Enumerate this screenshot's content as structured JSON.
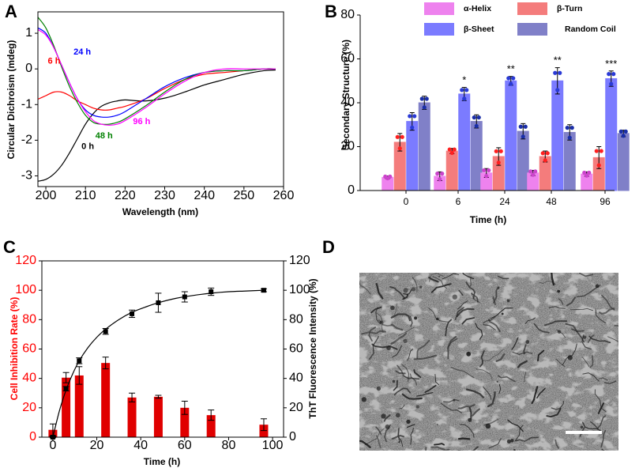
{
  "figure": {
    "panels": {
      "A": {
        "letter": "A"
      },
      "B": {
        "letter": "B"
      },
      "C": {
        "letter": "C"
      },
      "D": {
        "letter": "D"
      }
    }
  },
  "chart_data": [
    {
      "id": "A",
      "type": "line",
      "title": "",
      "xlabel": "Wavelength (nm)",
      "ylabel": "Circular Dichroism (mdeg)",
      "xlim": [
        198,
        260
      ],
      "ylim": [
        -3.3,
        1.6
      ],
      "xticks": [
        "200",
        "210",
        "220",
        "230",
        "240",
        "250",
        "260"
      ],
      "xtick_values": [
        200,
        210,
        220,
        230,
        240,
        250,
        260
      ],
      "yticks": [
        "-3",
        "-2",
        "-1",
        "0",
        "1"
      ],
      "ytick_values": [
        -3,
        -2,
        -1,
        0,
        1
      ],
      "series": [
        {
          "name": "0 h",
          "color": "#000000",
          "x": [
            198,
            200,
            202,
            204,
            206,
            208,
            210,
            212,
            214,
            216,
            218,
            220,
            225,
            230,
            235,
            240,
            245,
            250,
            255,
            258
          ],
          "y": [
            -3.15,
            -3.1,
            -2.95,
            -2.7,
            -2.35,
            -1.95,
            -1.55,
            -1.25,
            -1.05,
            -0.95,
            -0.9,
            -0.87,
            -0.9,
            -0.82,
            -0.65,
            -0.45,
            -0.3,
            -0.15,
            -0.05,
            -0.03
          ]
        },
        {
          "name": "6 h",
          "color": "#ff0000",
          "x": [
            198,
            200,
            202,
            204,
            206,
            208,
            210,
            212,
            214,
            216,
            218,
            220,
            225,
            230,
            235,
            240,
            245,
            250,
            255,
            258
          ],
          "y": [
            -0.85,
            -0.75,
            -0.65,
            -0.65,
            -0.75,
            -0.9,
            -1.0,
            -1.1,
            -1.15,
            -1.15,
            -1.1,
            -1.05,
            -0.85,
            -0.55,
            -0.3,
            -0.15,
            -0.1,
            -0.05,
            0.0,
            0.0
          ]
        },
        {
          "name": "24 h",
          "color": "#0000ff",
          "x": [
            198,
            200,
            202,
            204,
            206,
            208,
            210,
            212,
            214,
            216,
            218,
            220,
            225,
            230,
            235,
            240,
            245,
            250,
            255,
            258
          ],
          "y": [
            1.15,
            1.0,
            0.6,
            0.1,
            -0.4,
            -0.85,
            -1.15,
            -1.3,
            -1.35,
            -1.35,
            -1.3,
            -1.2,
            -0.85,
            -0.5,
            -0.25,
            -0.1,
            -0.05,
            -0.05,
            0.0,
            0.0
          ]
        },
        {
          "name": "48 h",
          "color": "#008000",
          "x": [
            198,
            200,
            202,
            204,
            206,
            208,
            210,
            212,
            214,
            216,
            218,
            220,
            225,
            230,
            235,
            240,
            245,
            250,
            255,
            258
          ],
          "y": [
            1.45,
            1.15,
            0.65,
            0.05,
            -0.5,
            -0.95,
            -1.3,
            -1.5,
            -1.55,
            -1.55,
            -1.5,
            -1.4,
            -1.05,
            -0.65,
            -0.3,
            -0.1,
            -0.05,
            -0.05,
            0.0,
            0.0
          ]
        },
        {
          "name": "96 h",
          "color": "#ff00ff",
          "x": [
            198,
            200,
            202,
            204,
            206,
            208,
            210,
            212,
            214,
            216,
            218,
            220,
            225,
            230,
            235,
            240,
            245,
            250,
            255,
            258
          ],
          "y": [
            1.1,
            0.95,
            0.6,
            0.1,
            -0.4,
            -0.85,
            -1.2,
            -1.45,
            -1.55,
            -1.58,
            -1.55,
            -1.45,
            -1.1,
            -0.7,
            -0.35,
            -0.1,
            0.0,
            0.0,
            0.0,
            0.0
          ]
        }
      ],
      "annotations": [
        {
          "text": "6 h",
          "color": "#ff0000"
        },
        {
          "text": "24 h",
          "color": "#0000ff"
        },
        {
          "text": "0 h",
          "color": "#000000"
        },
        {
          "text": "48 h",
          "color": "#008000"
        },
        {
          "text": "96 h",
          "color": "#ff00ff"
        }
      ]
    },
    {
      "id": "B",
      "type": "bar",
      "title": "",
      "xlabel": "Time (h)",
      "ylabel": "Secondary Structure (%)",
      "ylim": [
        0,
        80
      ],
      "yticks": [
        "0",
        "20",
        "40",
        "60",
        "80"
      ],
      "ytick_values": [
        0,
        20,
        40,
        60,
        80
      ],
      "categories": [
        "0",
        "6",
        "24",
        "48",
        "96"
      ],
      "series": [
        {
          "name": "α-Helix",
          "color": "#ee82ee",
          "point_color": "#cc44cc",
          "values": [
            6,
            6.5,
            8,
            8,
            7.5
          ],
          "errors": [
            0.6,
            2,
            2,
            1.2,
            1
          ]
        },
        {
          "name": "β-Turn",
          "color": "#f47c7c",
          "point_color": "#ff2020",
          "values": [
            22,
            18,
            15.5,
            15.5,
            15
          ],
          "errors": [
            4,
            1.2,
            4,
            2.5,
            5
          ]
        },
        {
          "name": "β-Sheet",
          "color": "#7b7bff",
          "point_color": "#2a3ad6",
          "values": [
            31.5,
            44,
            50,
            50,
            51
          ],
          "errors": [
            4,
            3,
            2,
            6,
            3.5
          ]
        },
        {
          "name": "Random Coil",
          "color": "#8080c8",
          "point_color": "#1a2ea8",
          "values": [
            40,
            31.5,
            27,
            26.5,
            26
          ],
          "errors": [
            3,
            3,
            3.5,
            3.5,
            1.5
          ]
        }
      ],
      "significance": [
        "",
        "*",
        "**",
        "**",
        "***"
      ]
    },
    {
      "id": "C",
      "type": "bar",
      "title": "",
      "xlabel": "Time (h)",
      "ylabel": "Cell Inhibition Rate (%)",
      "ylabel_color": "#ff0000",
      "xlim": [
        -5,
        105
      ],
      "ylim": [
        0,
        120
      ],
      "xticks": [
        "0",
        "20",
        "40",
        "60",
        "80",
        "100"
      ],
      "xtick_values": [
        0,
        20,
        40,
        60,
        80,
        100
      ],
      "yticks": [
        "0",
        "20",
        "40",
        "60",
        "80",
        "100",
        "120"
      ],
      "ytick_values": [
        0,
        20,
        40,
        60,
        80,
        100,
        120
      ],
      "bars": {
        "name": "Cell Inhibition Rate (%)",
        "color": "#e00000",
        "x": [
          0,
          6,
          12,
          24,
          36,
          48,
          60,
          72,
          96
        ],
        "values": [
          5,
          40.5,
          42,
          50.5,
          27,
          27.5,
          20,
          15,
          8.5
        ],
        "errors": [
          4,
          3.5,
          6,
          4,
          3,
          1,
          4.5,
          3.5,
          4
        ]
      },
      "line": {
        "name": "ThT Fluorescence Intensity (%)",
        "color": "#000000",
        "x": [
          0,
          6,
          12,
          24,
          36,
          48,
          60,
          72,
          96
        ],
        "values": [
          0,
          33,
          52,
          72,
          84,
          91.5,
          95.5,
          99,
          100
        ],
        "errors": [
          0.5,
          1.5,
          2,
          2,
          2.5,
          6.5,
          3.5,
          2.5,
          1
        ],
        "fit_x": [
          0,
          3,
          6,
          9,
          12,
          16,
          20,
          24,
          30,
          36,
          42,
          48,
          56,
          64,
          72,
          80,
          88,
          96
        ],
        "fit_y": [
          0,
          18,
          32,
          43,
          52,
          61,
          68,
          73.5,
          80,
          85,
          88.5,
          91.5,
          94.5,
          96.5,
          98,
          99,
          99.5,
          100
        ]
      },
      "y2label": "ThT Fluorescence Intensity (%)",
      "y2lim": [
        0,
        120
      ],
      "y2ticks": [
        "0",
        "20",
        "40",
        "60",
        "80",
        "100",
        "120"
      ],
      "y2tick_values": [
        0,
        20,
        40,
        60,
        80,
        100,
        120
      ]
    }
  ],
  "micrograph": {
    "description_name": "TEM micrograph of fibrils",
    "scale_bar": true
  }
}
